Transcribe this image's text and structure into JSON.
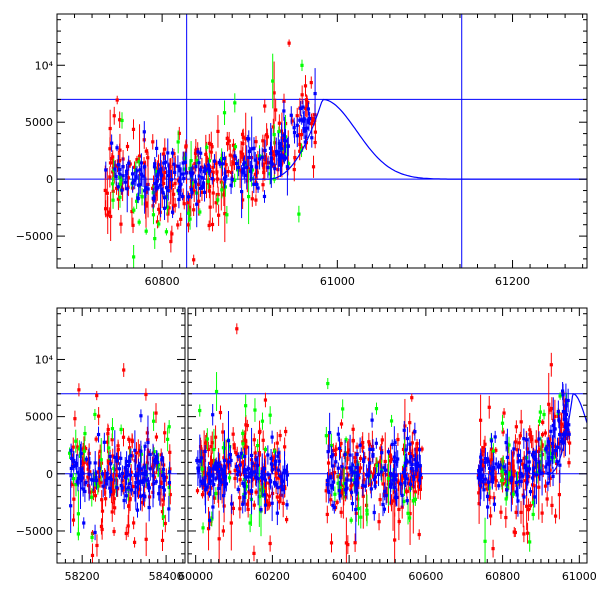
{
  "chart_data": [
    {
      "type": "scatter",
      "name": "top-panel",
      "xlim": [
        60680,
        61285
      ],
      "ylim": [
        -7800,
        14500
      ],
      "x_ticks": [
        60800,
        61000,
        61200
      ],
      "y_ticks": [
        {
          "value": -5000,
          "label": "−5000"
        },
        {
          "value": 0,
          "label": "0"
        },
        {
          "value": 5000,
          "label": "5000"
        },
        {
          "value": 10000,
          "label": "10⁴"
        }
      ],
      "horizontal_lines": [
        0,
        7000
      ],
      "vertical_lines": [
        60828,
        61142
      ],
      "model_curve": {
        "peak_x": 60983,
        "peak_y": 7000,
        "rise_start": 60920,
        "decay_width": 55
      },
      "series": [
        {
          "name": "red",
          "color": "#ff0000",
          "x_range": [
            60735,
            60975
          ],
          "seed": 11,
          "count": 260,
          "spread": 2600
        },
        {
          "name": "green",
          "color": "#00ff00",
          "x_range": [
            60735,
            60960
          ],
          "seed": 23,
          "count": 70,
          "spread": 2800
        },
        {
          "name": "blue",
          "color": "#0000ff",
          "x_range": [
            60735,
            60975
          ],
          "seed": 37,
          "count": 200,
          "spread": 1400
        }
      ]
    },
    {
      "type": "scatter",
      "name": "bottom-panel",
      "segments": [
        {
          "xlim": [
            58140,
            58445
          ],
          "x_ticks": [
            58200,
            58400
          ],
          "x_tick_labels": [
            "58200",
            "58400"
          ],
          "data_ranges": [
            [
              58170,
              58410
            ]
          ]
        },
        {
          "xlim": [
            59980,
            61020
          ],
          "x_ticks": [
            60000,
            60200,
            60400,
            60600,
            60800,
            61000
          ],
          "x_tick_labels": [
            "60000",
            "60200",
            "60400",
            "60600",
            "60800",
            "61000"
          ],
          "data_ranges": [
            [
              60000,
              60240
            ],
            [
              60340,
              60590
            ],
            [
              60735,
              60975
            ]
          ]
        }
      ],
      "ylim": [
        -7800,
        14500
      ],
      "y_ticks": [
        {
          "value": -5000,
          "label": "−5000"
        },
        {
          "value": 0,
          "label": "0"
        },
        {
          "value": 5000,
          "label": "5000"
        },
        {
          "value": 10000,
          "label": "10⁴"
        }
      ],
      "horizontal_lines": [
        0,
        7000
      ],
      "model_curve": {
        "peak_x": 60983,
        "peak_y": 7000,
        "rise_start": 60920,
        "decay_width": 55
      },
      "series": [
        {
          "name": "red",
          "color": "#ff0000",
          "seed": 51,
          "count": 620,
          "spread": 2800
        },
        {
          "name": "green",
          "color": "#00ff00",
          "seed": 67,
          "count": 140,
          "spread": 3000
        },
        {
          "name": "blue",
          "color": "#0000ff",
          "seed": 83,
          "count": 520,
          "spread": 1500
        }
      ]
    }
  ]
}
